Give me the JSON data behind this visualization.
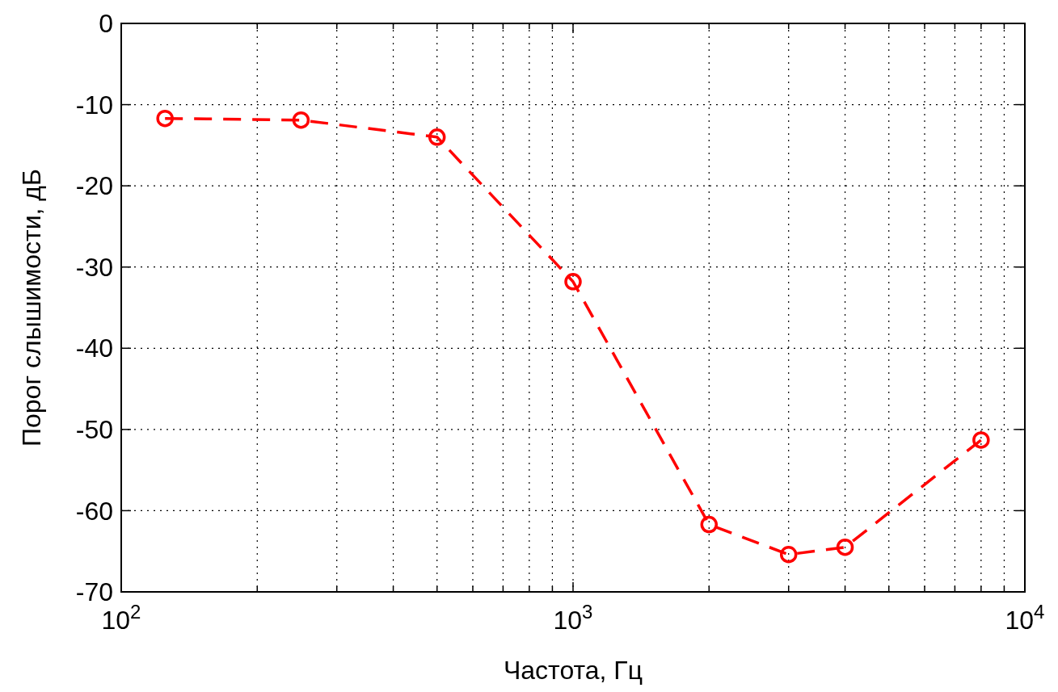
{
  "chart_data": {
    "type": "line",
    "xlabel": "Частота, Гц",
    "ylabel": "Порог слышимости, дБ",
    "log": "x",
    "x": [
      125,
      250,
      500,
      1000,
      2000,
      3000,
      4000,
      8000
    ],
    "series": [
      {
        "color": "#ff0000",
        "values": [
          -11.7,
          -11.9,
          -14,
          -31.8,
          -61.7,
          -65.4,
          -64.5,
          -51.3
        ]
      }
    ],
    "xlim": [
      100,
      10000
    ],
    "xticks": [
      {
        "value": 100,
        "label": "10$^{2}$"
      },
      {
        "value": 1000,
        "label": "10$^{3}$"
      },
      {
        "value": 10000,
        "label": "10$^{4}$"
      }
    ],
    "ylim": [
      -70,
      0
    ],
    "yticks": [
      -70,
      -60,
      -50,
      -40,
      -30,
      -20,
      -10,
      0
    ],
    "grid": true,
    "marker": "circle",
    "line_style": "dashed"
  }
}
